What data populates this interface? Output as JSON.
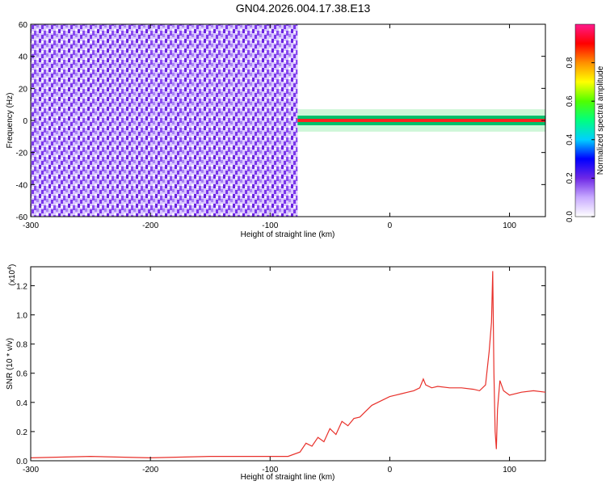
{
  "title": "GN04.2026.004.17.38.E13",
  "chart_data": [
    {
      "type": "heatmap",
      "xlabel": "Height of straight line (km)",
      "ylabel": "Frequency (Hz)",
      "xlim": [
        -300,
        130
      ],
      "ylim": [
        -60,
        60
      ],
      "xticks": [
        -300,
        -200,
        -100,
        0,
        100
      ],
      "yticks": [
        -60,
        -40,
        -20,
        0,
        20,
        40,
        60
      ],
      "colorbar": {
        "label": "Normalized spectral amplitude",
        "ticks": [
          "0.0",
          "0.2",
          "0.4",
          "0.6",
          "0.8"
        ],
        "range": [
          0,
          1
        ]
      },
      "regions": [
        {
          "x_range": [
            -300,
            -77
          ],
          "frequency_range": [
            -60,
            60
          ],
          "amplitude": [
            0.0,
            0.2
          ],
          "description": "broadband low-amplitude noise"
        },
        {
          "x_range": [
            -77,
            130
          ],
          "frequency_range": [
            -3,
            3
          ],
          "amplitude": [
            0.3,
            1.0
          ],
          "description": "narrow band near 0 Hz"
        }
      ]
    },
    {
      "type": "line",
      "xlabel": "Height of straight line (km)",
      "ylabel": "SNR (10 * v/v)",
      "scale_label": "(x10",
      "scale_exp": "4",
      "scale_close": ")",
      "xlim": [
        -300,
        130
      ],
      "ylim": [
        0,
        1.33
      ],
      "xticks": [
        -300,
        -200,
        -100,
        0,
        100
      ],
      "yticks": [
        "0.0",
        "0.2",
        "0.4",
        "0.6",
        "0.8",
        "1.0",
        "1.2"
      ],
      "grid": false,
      "series": [
        {
          "color": "#e8302a",
          "x": [
            -300,
            -250,
            -200,
            -150,
            -100,
            -85,
            -75,
            -70,
            -65,
            -60,
            -55,
            -50,
            -45,
            -40,
            -35,
            -30,
            -25,
            -20,
            -15,
            -10,
            -5,
            0,
            5,
            10,
            15,
            20,
            25,
            28,
            30,
            35,
            40,
            50,
            60,
            70,
            75,
            80,
            83,
            85,
            86,
            87,
            88,
            89,
            90,
            92,
            95,
            100,
            110,
            120,
            130
          ],
          "y": [
            0.02,
            0.03,
            0.02,
            0.03,
            0.03,
            0.03,
            0.06,
            0.12,
            0.1,
            0.16,
            0.13,
            0.22,
            0.18,
            0.27,
            0.24,
            0.29,
            0.3,
            0.34,
            0.38,
            0.4,
            0.42,
            0.44,
            0.45,
            0.46,
            0.47,
            0.48,
            0.5,
            0.56,
            0.52,
            0.5,
            0.51,
            0.5,
            0.5,
            0.49,
            0.48,
            0.52,
            0.75,
            0.95,
            1.3,
            0.6,
            0.2,
            0.08,
            0.35,
            0.55,
            0.48,
            0.45,
            0.47,
            0.48,
            0.47
          ]
        }
      ]
    }
  ]
}
